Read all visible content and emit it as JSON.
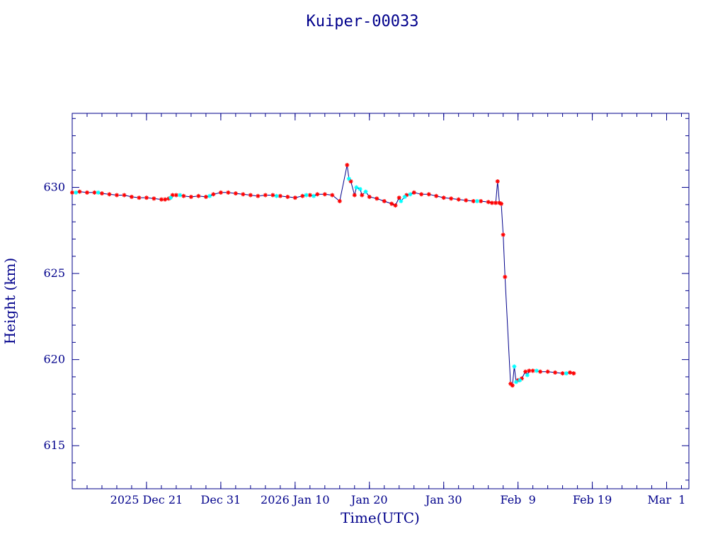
{
  "chart_data": {
    "type": "line",
    "title": "Kuiper-00033",
    "xlabel": "Time(UTC)",
    "ylabel": "Height (km)",
    "x_axis": {
      "type": "date",
      "range": [
        "2025-12-11",
        "2026-03-04"
      ],
      "ticks": [
        {
          "date": "2025-12-21",
          "label": "2025 Dec 21"
        },
        {
          "date": "2025-12-31",
          "label": "Dec 31"
        },
        {
          "date": "2026-01-10",
          "label": "2026 Jan 10"
        },
        {
          "date": "2026-01-20",
          "label": "Jan 20"
        },
        {
          "date": "2026-01-30",
          "label": "Jan 30"
        },
        {
          "date": "2026-02-09",
          "label": "Feb  9"
        },
        {
          "date": "2026-02-19",
          "label": "Feb 19"
        },
        {
          "date": "2026-03-01",
          "label": "Mar  1"
        }
      ]
    },
    "y_axis": {
      "range": [
        612.5,
        634.3
      ],
      "ticks": [
        615,
        620,
        625,
        630
      ]
    },
    "grid": false,
    "line_color": "#00008b",
    "series": [
      {
        "marker_color": "#ff0000",
        "marker": "asterisk",
        "points": [
          [
            "2025-12-11",
            629.7
          ],
          [
            "2025-12-12",
            629.75
          ],
          [
            "2025-12-13",
            629.7
          ],
          [
            "2025-12-14",
            629.7
          ],
          [
            "2025-12-15",
            629.65
          ],
          [
            "2025-12-16",
            629.6
          ],
          [
            "2025-12-17",
            629.55
          ],
          [
            "2025-12-18",
            629.55
          ],
          [
            "2025-12-19",
            629.45
          ],
          [
            "2025-12-20",
            629.4
          ],
          [
            "2025-12-21",
            629.4
          ],
          [
            "2025-12-22",
            629.35
          ],
          [
            "2025-12-23",
            629.3
          ],
          [
            "2025-12-23 12:00",
            629.3
          ],
          [
            "2025-12-24",
            629.35
          ],
          [
            "2025-12-24 12:00",
            629.55
          ],
          [
            "2025-12-25",
            629.55
          ],
          [
            "2025-12-26",
            629.5
          ],
          [
            "2025-12-27",
            629.45
          ],
          [
            "2025-12-28",
            629.5
          ],
          [
            "2025-12-29",
            629.45
          ],
          [
            "2025-12-30",
            629.6
          ],
          [
            "2025-12-31",
            629.7
          ],
          [
            "2026-01-01",
            629.7
          ],
          [
            "2026-01-02",
            629.65
          ],
          [
            "2026-01-03",
            629.6
          ],
          [
            "2026-01-04",
            629.55
          ],
          [
            "2026-01-05",
            629.5
          ],
          [
            "2026-01-06",
            629.55
          ],
          [
            "2026-01-07",
            629.55
          ],
          [
            "2026-01-08",
            629.5
          ],
          [
            "2026-01-09",
            629.45
          ],
          [
            "2026-01-10",
            629.4
          ],
          [
            "2026-01-11",
            629.5
          ],
          [
            "2026-01-12",
            629.55
          ],
          [
            "2026-01-13",
            629.6
          ],
          [
            "2026-01-14",
            629.6
          ],
          [
            "2026-01-15",
            629.55
          ],
          [
            "2026-01-16",
            629.2
          ],
          [
            "2026-01-17",
            631.3
          ],
          [
            "2026-01-17 12:00",
            630.35
          ],
          [
            "2026-01-18",
            629.55
          ],
          [
            "2026-01-19",
            629.55
          ],
          [
            "2026-01-20",
            629.45
          ],
          [
            "2026-01-21",
            629.35
          ],
          [
            "2026-01-22",
            629.2
          ],
          [
            "2026-01-23",
            629.05
          ],
          [
            "2026-01-23 12:00",
            628.95
          ],
          [
            "2026-01-24",
            629.4
          ],
          [
            "2026-01-25",
            629.55
          ],
          [
            "2026-01-26",
            629.7
          ],
          [
            "2026-01-27",
            629.6
          ],
          [
            "2026-01-28",
            629.6
          ],
          [
            "2026-01-29",
            629.5
          ],
          [
            "2026-01-30",
            629.4
          ],
          [
            "2026-01-31",
            629.35
          ],
          [
            "2026-02-01",
            629.3
          ],
          [
            "2026-02-02",
            629.25
          ],
          [
            "2026-02-03",
            629.2
          ],
          [
            "2026-02-04",
            629.2
          ],
          [
            "2026-02-05",
            629.15
          ],
          [
            "2026-02-05 12:00",
            629.1
          ],
          [
            "2026-02-06",
            629.1
          ],
          [
            "2026-02-06 06:00",
            630.35
          ],
          [
            "2026-02-06 12:00",
            629.1
          ],
          [
            "2026-02-06 18:00",
            629.05
          ],
          [
            "2026-02-07",
            627.25
          ],
          [
            "2026-02-07 06:00",
            624.8
          ],
          [
            "2026-02-08",
            618.6
          ],
          [
            "2026-02-08 06:00",
            618.5
          ],
          [
            "2026-02-09",
            618.8
          ],
          [
            "2026-02-09 12:00",
            618.9
          ],
          [
            "2026-02-10",
            619.3
          ],
          [
            "2026-02-10 12:00",
            619.35
          ],
          [
            "2026-02-11",
            619.35
          ],
          [
            "2026-02-12",
            619.3
          ],
          [
            "2026-02-13",
            619.3
          ],
          [
            "2026-02-14",
            619.25
          ],
          [
            "2026-02-15",
            619.2
          ],
          [
            "2026-02-16",
            619.25
          ],
          [
            "2026-02-16 12:00",
            619.2
          ]
        ]
      },
      {
        "marker_color": "#00ffff",
        "marker": "asterisk",
        "points": [
          [
            "2025-12-11 12:00",
            629.7
          ],
          [
            "2025-12-14 12:00",
            629.7
          ],
          [
            "2025-12-24 06:00",
            629.4
          ],
          [
            "2025-12-25 12:00",
            629.55
          ],
          [
            "2025-12-29 12:00",
            629.5
          ],
          [
            "2026-01-07 12:00",
            629.5
          ],
          [
            "2026-01-11 12:00",
            629.55
          ],
          [
            "2026-01-12 12:00",
            629.5
          ],
          [
            "2026-01-17 06:00",
            630.5
          ],
          [
            "2026-01-18 06:00",
            630.0
          ],
          [
            "2026-01-18 18:00",
            629.9
          ],
          [
            "2026-01-19 12:00",
            629.75
          ],
          [
            "2026-01-24 06:00",
            629.2
          ],
          [
            "2026-01-24 18:00",
            629.45
          ],
          [
            "2026-01-25 12:00",
            629.6
          ],
          [
            "2026-02-03 12:00",
            629.2
          ],
          [
            "2026-02-08 12:00",
            619.6
          ],
          [
            "2026-02-08 18:00",
            618.7
          ],
          [
            "2026-02-09 06:00",
            618.8
          ],
          [
            "2026-02-10 06:00",
            619.1
          ],
          [
            "2026-02-11 12:00",
            619.35
          ],
          [
            "2026-02-15 12:00",
            619.2
          ]
        ]
      }
    ]
  }
}
